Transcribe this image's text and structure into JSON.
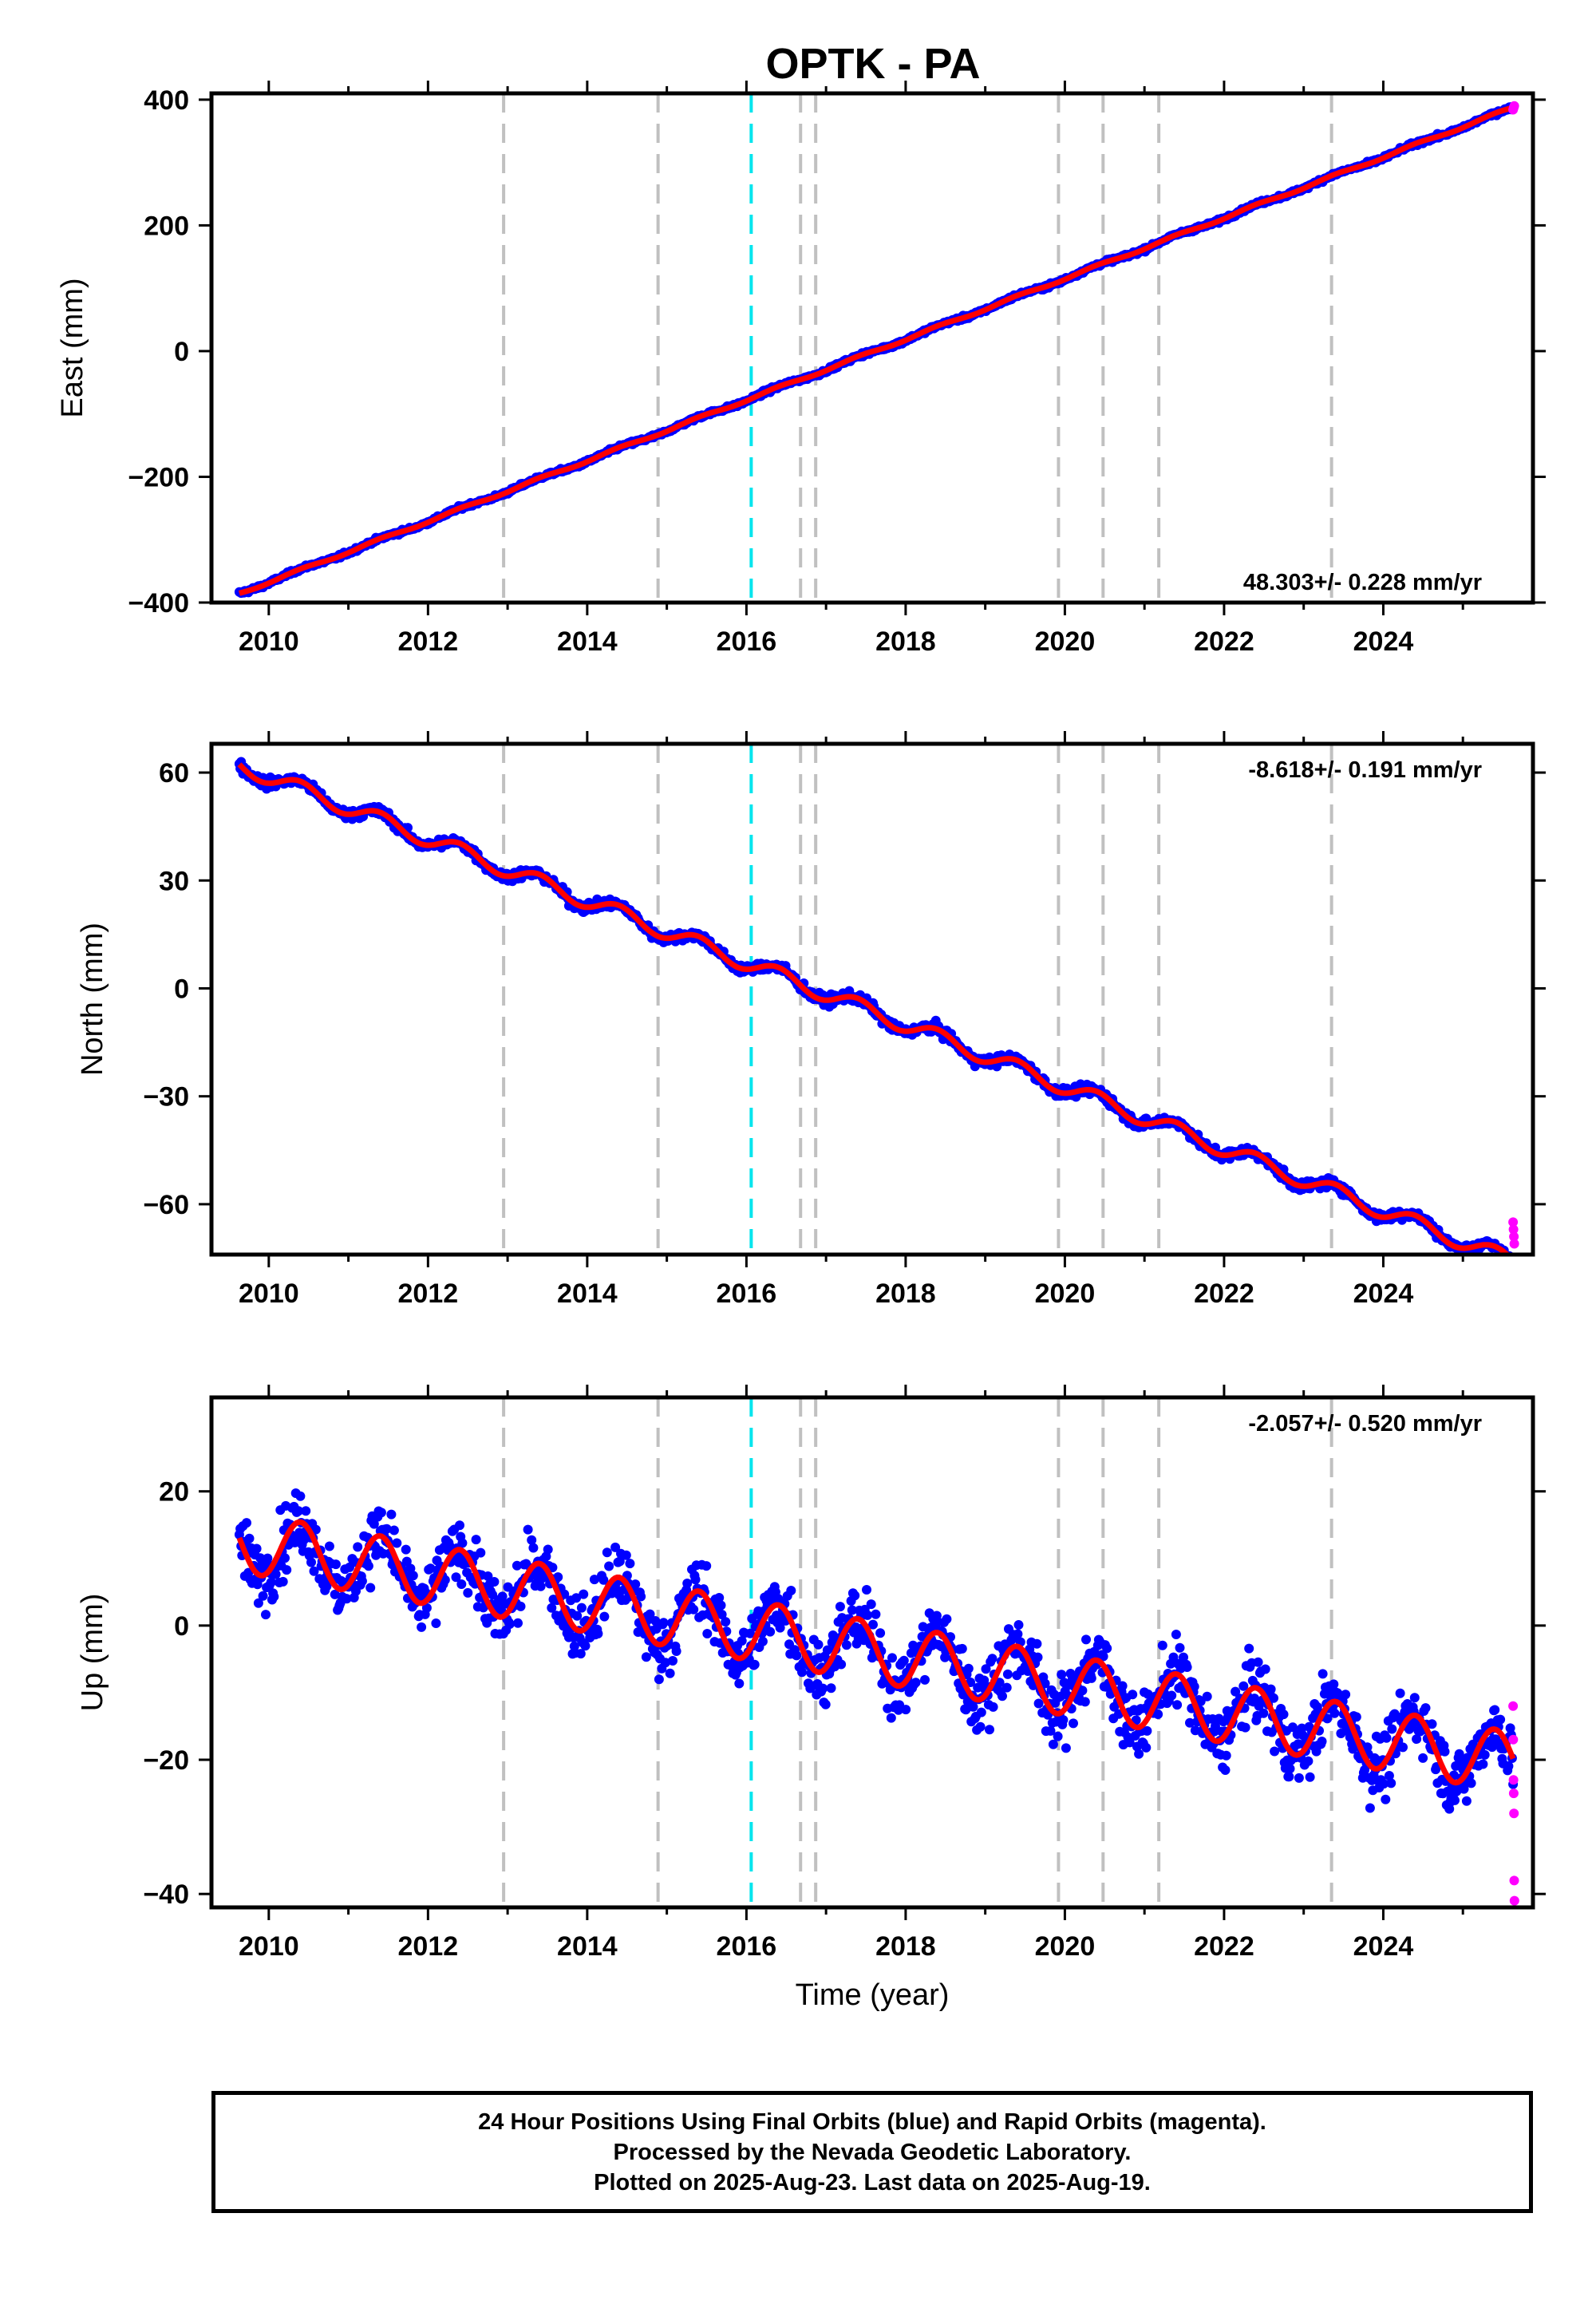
{
  "title": "OPTK - PA",
  "footer": {
    "line1": "24 Hour Positions Using Final Orbits (blue) and Rapid Orbits (magenta).",
    "line2": "Processed by the Nevada Geodetic Laboratory.",
    "line3": "Plotted on 2025-Aug-23. Last data on 2025-Aug-19."
  },
  "colors": {
    "final": "#0000ff",
    "rapid": "#ff00ff",
    "model": "#ff0000",
    "equipment_change": "#c0c0c0",
    "earthquake": "#00e5ee"
  },
  "chart_data": [
    {
      "type": "scatter",
      "name": "east",
      "ylabel": "East (mm)",
      "xlabel": "",
      "rate_label": "48.303+/- 0.228 mm/yr",
      "rate_value": 48.303,
      "rate_sigma": 0.228,
      "offset_mm": -385.5,
      "xlim": [
        2009.28,
        2025.88
      ],
      "ylim": [
        -400,
        410
      ],
      "xticks": [
        2010,
        2012,
        2014,
        2016,
        2018,
        2020,
        2022,
        2024
      ],
      "yticks": [
        -400,
        -200,
        0,
        200,
        400
      ],
      "noise_mm": 2.5,
      "seasonal_mm": 2.0,
      "rapid_y": [
        384,
        386,
        388,
        390
      ]
    },
    {
      "type": "scatter",
      "name": "north",
      "ylabel": "North (mm)",
      "xlabel": "",
      "rate_label": "-8.618+/- 0.191 mm/yr",
      "rate_value": -8.618,
      "rate_sigma": 0.191,
      "offset_mm": 62,
      "xlim": [
        2009.28,
        2025.88
      ],
      "ylim": [
        -74,
        68
      ],
      "xticks": [
        2010,
        2012,
        2014,
        2016,
        2018,
        2020,
        2022,
        2024
      ],
      "yticks": [
        -60,
        -30,
        0,
        30,
        60
      ],
      "noise_mm": 1.2,
      "seasonal_mm": 2.2,
      "rapid_y": [
        -65,
        -67,
        -69,
        -71
      ]
    },
    {
      "type": "scatter",
      "name": "up",
      "ylabel": "Up (mm)",
      "xlabel": "Time (year)",
      "rate_label": "-2.057+/- 0.520 mm/yr",
      "rate_value": -2.057,
      "rate_sigma": 0.52,
      "offset_mm": 12.5,
      "xlim": [
        2009.28,
        2025.88
      ],
      "ylim": [
        -42,
        34
      ],
      "xticks": [
        2010,
        2012,
        2014,
        2016,
        2018,
        2020,
        2022,
        2024
      ],
      "yticks": [
        -40,
        -20,
        0,
        20
      ],
      "noise_mm": 4.0,
      "seasonal_mm": 4.5,
      "rapid_y": [
        -12,
        -17,
        -23,
        -25,
        -28,
        -38,
        -41
      ]
    }
  ],
  "time_range": [
    2009.63,
    2025.63
  ],
  "equipment_changes": [
    2012.95,
    2014.89,
    2016.68,
    2016.87,
    2019.92,
    2020.48,
    2021.18,
    2023.35
  ],
  "earthquakes": [
    2016.06
  ]
}
